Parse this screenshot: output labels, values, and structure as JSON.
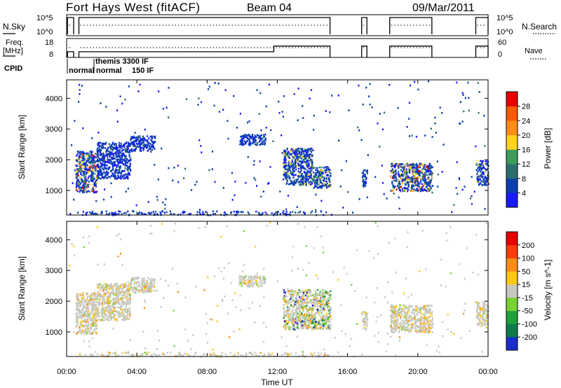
{
  "header": {
    "site": "Fort Hays West (fitACF)",
    "beam": "Beam 04",
    "date": "09/Mar/2011"
  },
  "panels": {
    "nsky_label": "N.Sky",
    "nsky_ticks": [
      "10^5",
      "10^0"
    ],
    "nsearch_label": "N.Search",
    "nsearch_ticks": [
      "10^5",
      "10^0"
    ],
    "freq_label_1": "Freq.",
    "freq_label_2": "[MHz]",
    "freq_ticks": [
      "18",
      "8"
    ],
    "nave_label": "Nave",
    "nave_ticks": [
      "60",
      "0"
    ],
    "cpid_label": "CPID",
    "cpid_names": [
      "normal",
      "themis 3300 IF",
      "normal",
      "150 IF"
    ]
  },
  "axes": {
    "ylabel": "Slant Range [km]",
    "yticks": [
      "1000",
      "2000",
      "3000",
      "4000"
    ],
    "yrange": [
      200,
      4600
    ],
    "xlabel": "Time UT",
    "xticks": [
      "00:00",
      "04:00",
      "08:00",
      "12:00",
      "16:00",
      "20:00",
      "00:00"
    ],
    "xrange_hours": [
      0,
      24
    ]
  },
  "colorbars": {
    "power": {
      "label": "Power [dB]",
      "ticks": [
        "4",
        "8",
        "12",
        "16",
        "20",
        "24",
        "28"
      ],
      "colors": [
        "#1a1aff",
        "#0a3fb0",
        "#2b6e6e",
        "#3c9b5a",
        "#ffd21e",
        "#ff8c14",
        "#ff5a0a",
        "#e60000"
      ]
    },
    "velocity": {
      "label": "Velocity [m s^-1]",
      "ticks": [
        "200",
        "100",
        "50",
        "15",
        "-15",
        "-50",
        "-100",
        "-200"
      ],
      "colors": [
        "#1a2dcc",
        "#0f7a4b",
        "#1ea03c",
        "#78d232",
        "#c8c8c0",
        "#ffc814",
        "#ff8c14",
        "#ff3c0a",
        "#e60000"
      ]
    }
  },
  "chart_data": [
    {
      "type": "heatmap",
      "name": "Power",
      "x_unit": "hours UT",
      "y_unit": "km",
      "regions": [
        {
          "t": [
            0.5,
            1.7
          ],
          "r": [
            950,
            2300
          ],
          "level": "high"
        },
        {
          "t": [
            1.7,
            3.6
          ],
          "r": [
            1400,
            2600
          ],
          "level": "low"
        },
        {
          "t": [
            3.6,
            5.0
          ],
          "r": [
            2300,
            2800
          ],
          "level": "low"
        },
        {
          "t": [
            9.8,
            11.3
          ],
          "r": [
            2500,
            2850
          ],
          "level": "low"
        },
        {
          "t": [
            12.3,
            14.0
          ],
          "r": [
            1200,
            2400
          ],
          "level": "mid"
        },
        {
          "t": [
            14.0,
            15.0
          ],
          "r": [
            1100,
            1800
          ],
          "level": "mid"
        },
        {
          "t": [
            16.8,
            17.1
          ],
          "r": [
            1100,
            1700
          ],
          "level": "low"
        },
        {
          "t": [
            18.4,
            20.8
          ],
          "r": [
            1000,
            1900
          ],
          "level": "high"
        },
        {
          "t": [
            23.3,
            24.0
          ],
          "r": [
            1200,
            2000
          ],
          "level": "mid"
        }
      ]
    },
    {
      "type": "heatmap",
      "name": "Velocity",
      "x_unit": "hours UT",
      "y_unit": "km",
      "regions": [
        {
          "t": [
            0.5,
            1.7
          ],
          "r": [
            950,
            2300
          ],
          "class": "low"
        },
        {
          "t": [
            1.7,
            3.6
          ],
          "r": [
            1400,
            2600
          ],
          "class": "low"
        },
        {
          "t": [
            3.6,
            5.0
          ],
          "r": [
            2300,
            2800
          ],
          "class": "low"
        },
        {
          "t": [
            9.8,
            11.3
          ],
          "r": [
            2500,
            2850
          ],
          "class": "low"
        },
        {
          "t": [
            12.3,
            15.0
          ],
          "r": [
            1100,
            2400
          ],
          "class": "mixed"
        },
        {
          "t": [
            16.8,
            17.1
          ],
          "r": [
            1100,
            1700
          ],
          "class": "low"
        },
        {
          "t": [
            18.4,
            20.8
          ],
          "r": [
            1000,
            1900
          ],
          "class": "low"
        },
        {
          "t": [
            23.3,
            24.0
          ],
          "r": [
            1200,
            2000
          ],
          "class": "low"
        }
      ]
    },
    {
      "type": "line",
      "name": "N.Sky",
      "segments": [
        [
          0.05,
          0.4
        ],
        [
          0.7,
          15.0
        ],
        [
          16.8,
          17.1
        ],
        [
          18.4,
          20.8
        ],
        [
          23.3,
          24.0
        ]
      ]
    },
    {
      "type": "line",
      "name": "Freq.",
      "segments": [
        [
          0.05,
          0.4
        ],
        [
          0.7,
          15.0
        ],
        [
          16.8,
          17.1
        ],
        [
          18.4,
          20.8
        ],
        [
          23.3,
          24.0
        ]
      ],
      "freq_low_mhz": 11,
      "freq_high_mhz": 14,
      "switch_hour": 11.8
    }
  ]
}
